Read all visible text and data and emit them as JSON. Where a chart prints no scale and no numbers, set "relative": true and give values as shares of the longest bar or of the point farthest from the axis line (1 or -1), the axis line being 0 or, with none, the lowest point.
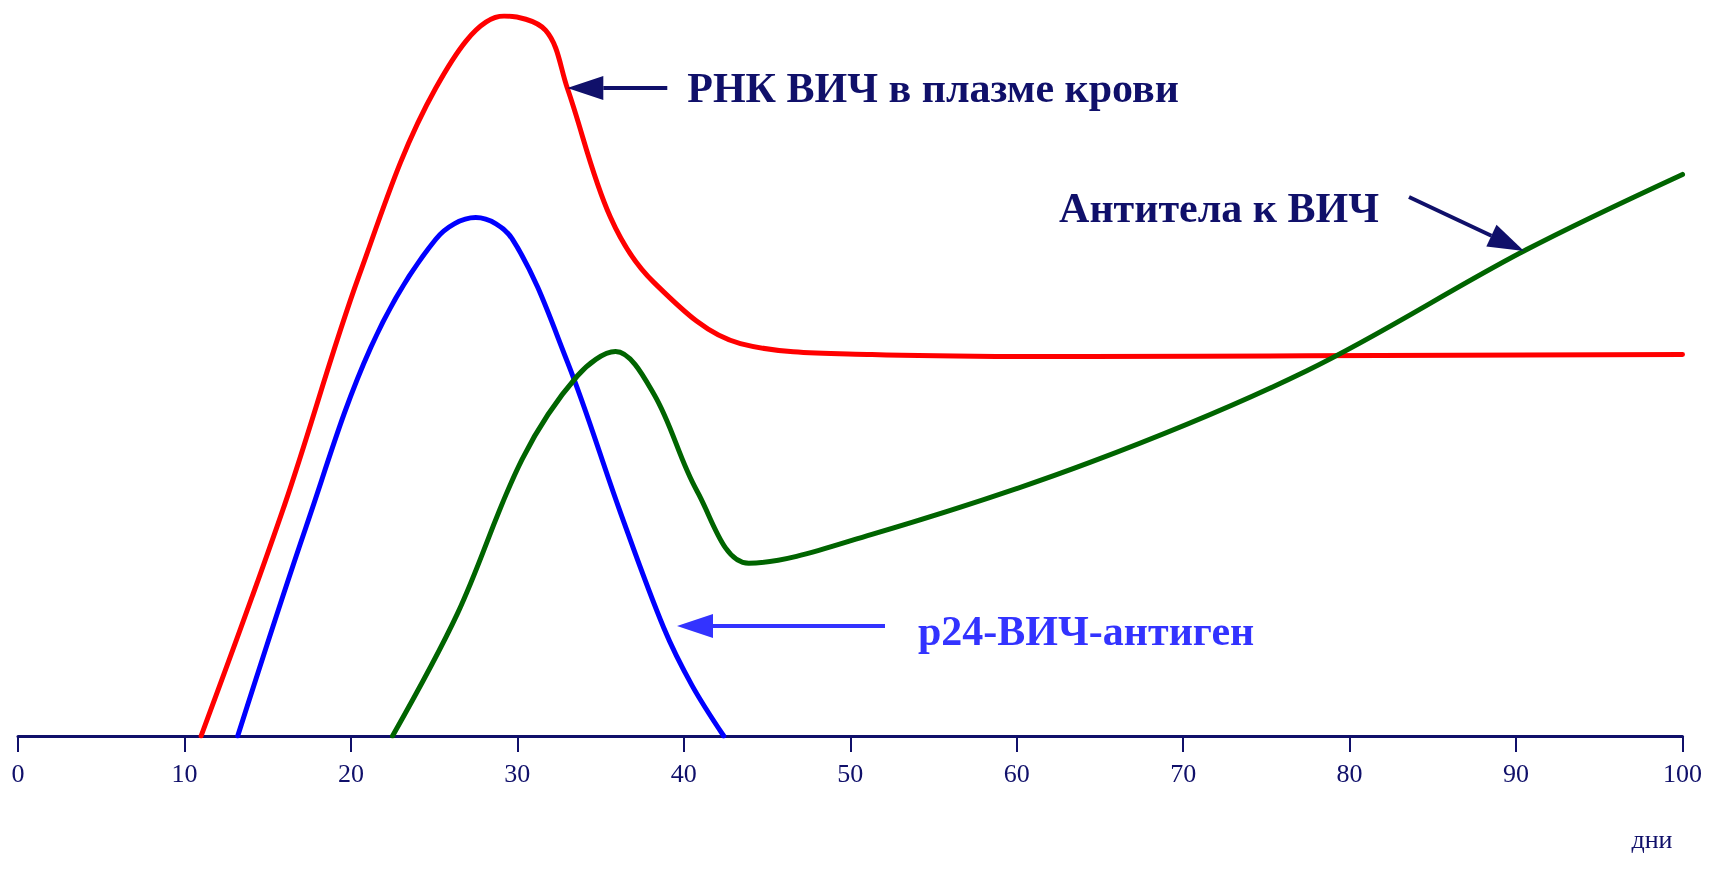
{
  "chart_data": {
    "type": "line",
    "relative": true,
    "xlabel": "дни",
    "xlim": [
      0,
      100
    ],
    "xticks": [
      0,
      10,
      20,
      30,
      40,
      50,
      60,
      70,
      80,
      90,
      100
    ],
    "grid": false,
    "marker": "none",
    "line_style": "solid",
    "series": [
      {
        "color": "#ff0000",
        "x": [
          11,
          16,
          20.5,
          25.1,
          29.2,
          31.7,
          33,
          35.6,
          38.2,
          43.4,
          51.3,
          64.4,
          77.4,
          100
        ],
        "values": [
          0,
          0.32,
          0.64,
          0.9,
          1,
          0.98,
          0.9,
          0.72,
          0.63,
          0.545,
          0.53,
          0.527,
          0.528,
          0.53
        ]
      },
      {
        "color": "#0000ff",
        "x": [
          13.2,
          17.3,
          21.2,
          25.1,
          27.5,
          29.7,
          33,
          36.2,
          38.8,
          40.5,
          42.4
        ],
        "values": [
          0,
          0.29,
          0.54,
          0.69,
          0.72,
          0.69,
          0.52,
          0.31,
          0.15,
          0.07,
          0
        ]
      },
      {
        "color": "#006400",
        "x": [
          22.5,
          26.4,
          30.3,
          33.6,
          35.9,
          38.2,
          40.8,
          43.9,
          51.3,
          64.4,
          77.4,
          90.5,
          100
        ],
        "values": [
          0,
          0.17,
          0.385,
          0.5,
          0.534,
          0.475,
          0.34,
          0.24,
          0.28,
          0.38,
          0.507,
          0.674,
          0.78
        ]
      }
    ],
    "annotations": [
      {
        "text": "РНК ВИЧ в плазме крови",
        "x": 33,
        "y": 0.9
      },
      "Антитела к ВИЧ",
      "p24-ВИЧ-антиген"
    ]
  }
}
